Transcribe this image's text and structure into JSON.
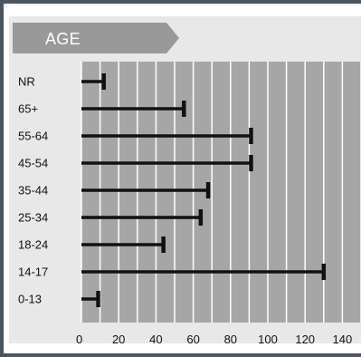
{
  "colors": {
    "frame_border": "#4a5562",
    "panel_background": "#e8e8e8",
    "plot_background": "#a6a6a6",
    "gridline": "#ffffff",
    "bar": "#111111",
    "title_tab": "#999999"
  },
  "chart_data": {
    "type": "bar",
    "orientation": "horizontal",
    "title": "AGE",
    "xlabel": "",
    "ylabel": "",
    "categories": [
      "NR",
      "65+",
      "55-64",
      "45-54",
      "35-44",
      "25-34",
      "18-24",
      "14-17",
      "0-13"
    ],
    "values": [
      12,
      55,
      91,
      91,
      68,
      64,
      44,
      130,
      9
    ],
    "xlim": [
      0,
      150
    ],
    "xticks": [
      0,
      20,
      40,
      60,
      80,
      100,
      120,
      140
    ],
    "grid": true,
    "bar_style": "error-bar line with end cap"
  }
}
